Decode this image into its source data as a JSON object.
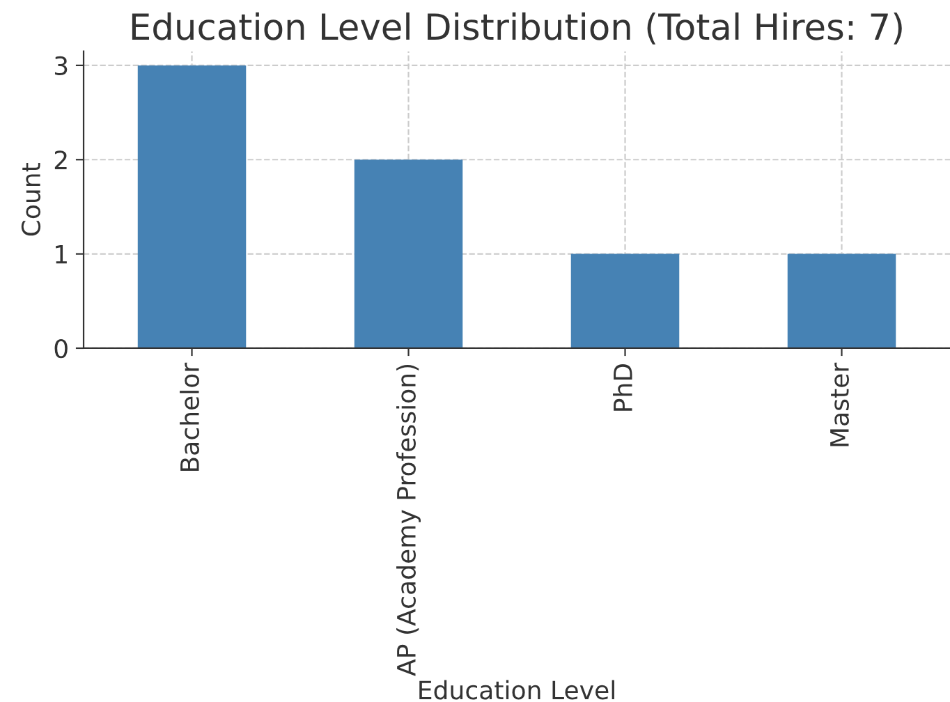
{
  "chart_data": {
    "type": "bar",
    "title": "Education Level Distribution (Total Hires: 7)",
    "xlabel": "Education Level",
    "ylabel": "Count",
    "categories": [
      "Bachelor",
      "AP (Academy Profession)",
      "PhD",
      "Master"
    ],
    "values": [
      3,
      2,
      1,
      1
    ],
    "color": "#4682b4",
    "ylim": [
      0,
      3.15
    ],
    "yticks": [
      0,
      1,
      2,
      3
    ],
    "grid": true
  }
}
